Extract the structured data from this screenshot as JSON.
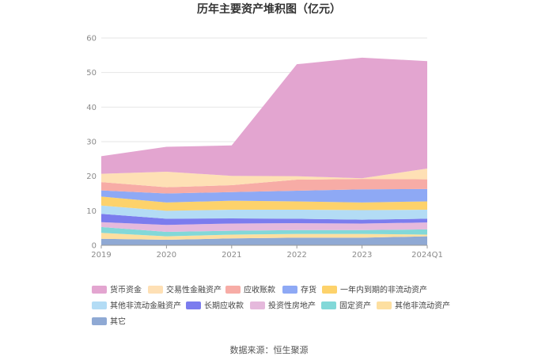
{
  "chart_data": {
    "type": "area",
    "stacked": true,
    "title": "历年主要资产堆积图（亿元）",
    "x": [
      "2019",
      "2020",
      "2021",
      "2022",
      "2023",
      "2024Q1"
    ],
    "ylim": [
      0,
      60
    ],
    "yticks": [
      0,
      10,
      20,
      30,
      40,
      50,
      60
    ],
    "grid": true,
    "legend_position": "bottom-left",
    "series": [
      {
        "name": "其它",
        "color": "#8fa9d4",
        "values": [
          1.9,
          1.6,
          2.0,
          2.2,
          2.2,
          2.6
        ]
      },
      {
        "name": "其他非流动资产",
        "color": "#fddfa0",
        "values": [
          1.7,
          1.0,
          1.1,
          1.1,
          1.1,
          0.5
        ]
      },
      {
        "name": "固定资产",
        "color": "#82d8d8",
        "values": [
          1.7,
          1.3,
          1.1,
          1.1,
          1.1,
          1.5
        ]
      },
      {
        "name": "投资性房地产",
        "color": "#e5b9dc",
        "values": [
          1.4,
          2.0,
          2.1,
          2.0,
          1.9,
          2.0
        ]
      },
      {
        "name": "长期应收款",
        "color": "#7b7cee",
        "values": [
          2.4,
          1.8,
          1.5,
          1.3,
          1.1,
          1.1
        ]
      },
      {
        "name": "其他非流动金融资产",
        "color": "#b3dcf5",
        "values": [
          2.4,
          2.3,
          2.5,
          2.6,
          2.8,
          2.6
        ]
      },
      {
        "name": "一年内到期的非流动资产",
        "color": "#fdd26b",
        "values": [
          2.6,
          2.4,
          2.6,
          2.4,
          2.2,
          2.4
        ]
      },
      {
        "name": "存货",
        "color": "#8ea9f5",
        "values": [
          1.8,
          2.6,
          2.5,
          3.1,
          3.8,
          3.6
        ]
      },
      {
        "name": "应收账款",
        "color": "#f7aca6",
        "values": [
          2.4,
          1.8,
          2.0,
          3.2,
          3.0,
          2.8
        ]
      },
      {
        "name": "交易性金融资产",
        "color": "#fee0b5",
        "values": [
          2.4,
          4.5,
          2.7,
          1.0,
          0.2,
          3.1
        ]
      },
      {
        "name": "货币资金",
        "color": "#e3a5d0",
        "values": [
          5.1,
          7.2,
          8.8,
          32.4,
          34.9,
          31.1
        ]
      }
    ],
    "legend_order": [
      "货币资金",
      "交易性金融资产",
      "应收账款",
      "存货",
      "一年内到期的非流动资产",
      "其他非流动金融资产",
      "长期应收款",
      "投资性房地产",
      "固定资产",
      "其他非流动资产",
      "其它"
    ]
  },
  "footer": {
    "source": "数据来源：恒生聚源"
  }
}
